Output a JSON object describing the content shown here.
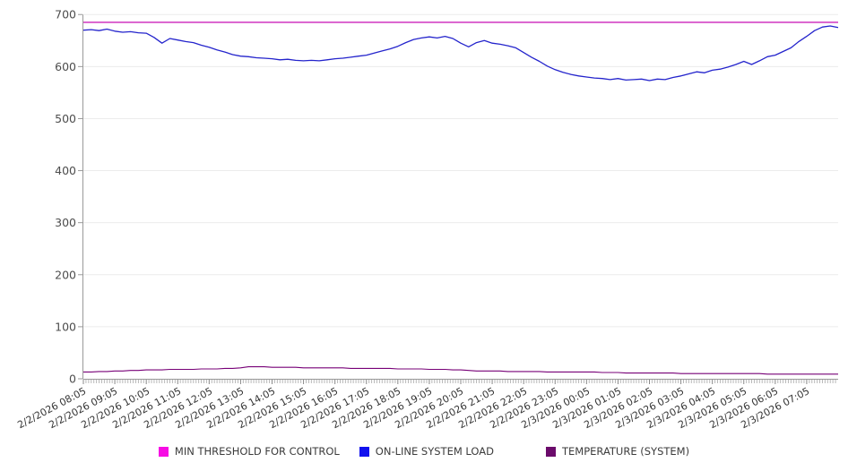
{
  "chart_data": {
    "type": "line",
    "title": "",
    "x_axis": {
      "labels": [
        "2/2/2026 08:05",
        "2/2/2026 09:05",
        "2/2/2026 10:05",
        "2/2/2026 11:05",
        "2/2/2026 12:05",
        "2/2/2026 13:05",
        "2/2/2026 14:05",
        "2/2/2026 15:05",
        "2/2/2026 16:05",
        "2/2/2026 17:05",
        "2/2/2026 18:05",
        "2/2/2026 19:05",
        "2/2/2026 20:05",
        "2/2/2026 21:05",
        "2/2/2026 22:05",
        "2/2/2026 23:05",
        "2/3/2026 00:05",
        "2/3/2026 01:05",
        "2/3/2026 02:05",
        "2/3/2026 03:05",
        "2/3/2026 04:05",
        "2/3/2026 05:05",
        "2/3/2026 06:05",
        "2/3/2026 07:05"
      ],
      "label_interval_minutes": 60,
      "minor_tick_minutes": 5,
      "domain_minutes": 1440
    },
    "y_axis": {
      "min": 0,
      "max": 700,
      "tick_step": 100
    },
    "grid": "horizontal",
    "legend_position": "bottom",
    "series": [
      {
        "name": "MIN THRESHOLD FOR CONTROL",
        "type": "constant",
        "value": 685,
        "color": "#cc22bb",
        "swatch": "#f70ce4"
      },
      {
        "name": "ON-LINE SYSTEM LOAD",
        "type": "line",
        "start_min": 0,
        "step_min": 15,
        "color": "#2424cc",
        "swatch": "#1111ee",
        "values": [
          670,
          671,
          669,
          672,
          668,
          666,
          667,
          665,
          664,
          656,
          645,
          654,
          651,
          648,
          646,
          641,
          637,
          632,
          628,
          623,
          620,
          619,
          617,
          616,
          615,
          613,
          614,
          612,
          611,
          612,
          611,
          613,
          615,
          616,
          618,
          620,
          622,
          626,
          630,
          634,
          639,
          646,
          652,
          655,
          657,
          655,
          658,
          654,
          645,
          638,
          646,
          650,
          645,
          643,
          640,
          636,
          627,
          618,
          610,
          601,
          594,
          589,
          585,
          582,
          580,
          578,
          577,
          575,
          577,
          574,
          575,
          576,
          573,
          576,
          575,
          579,
          582,
          586,
          590,
          588,
          593,
          595,
          599,
          604,
          610,
          604,
          611,
          619,
          622,
          629,
          636,
          648,
          658,
          669,
          676,
          678,
          675
        ]
      },
      {
        "name": "TEMPERATURE (SYSTEM)",
        "type": "line",
        "start_min": 0,
        "step_min": 15,
        "color": "#770077",
        "swatch": "#6b0b6b",
        "values": [
          13,
          13,
          14,
          14,
          15,
          15,
          16,
          16,
          17,
          17,
          17,
          18,
          18,
          18,
          18,
          19,
          19,
          19,
          20,
          20,
          21,
          23,
          23,
          23,
          22,
          22,
          22,
          22,
          21,
          21,
          21,
          21,
          21,
          21,
          20,
          20,
          20,
          20,
          20,
          20,
          19,
          19,
          19,
          19,
          18,
          18,
          18,
          17,
          17,
          16,
          15,
          15,
          15,
          15,
          14,
          14,
          14,
          14,
          14,
          13,
          13,
          13,
          13,
          13,
          13,
          13,
          12,
          12,
          12,
          11,
          11,
          11,
          11,
          11,
          11,
          11,
          10,
          10,
          10,
          10,
          10,
          10,
          10,
          10,
          10,
          10,
          10,
          9,
          9,
          9,
          9,
          9,
          9,
          9,
          9,
          9,
          9
        ]
      }
    ]
  }
}
